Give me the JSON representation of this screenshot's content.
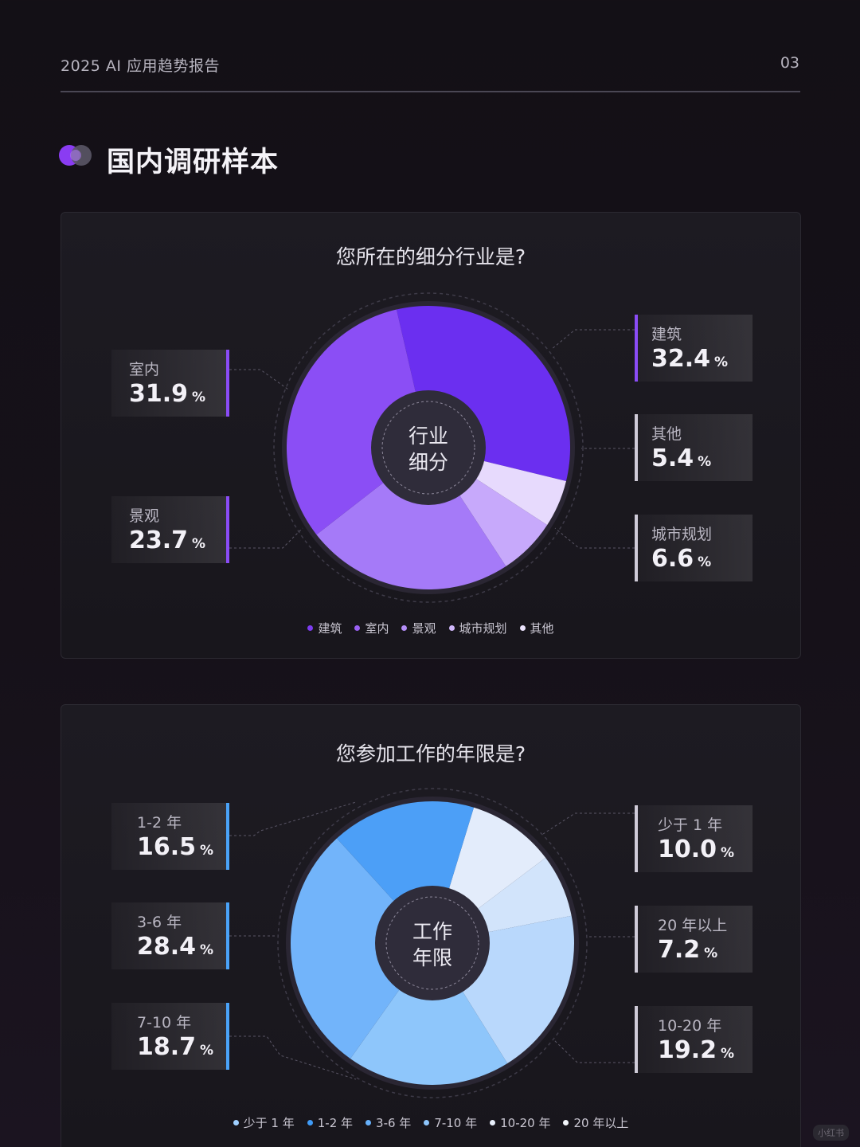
{
  "header": {
    "title": "2025 AI 应用趋势报告",
    "page": "03"
  },
  "section": {
    "title": "国内调研样本"
  },
  "watermark": "小红书",
  "chart_data": [
    {
      "type": "pie",
      "title": "您所在的细分行业是?",
      "center_label": [
        "行业",
        "细分"
      ],
      "slices": [
        {
          "label": "建筑",
          "value": 32.4,
          "unit": "%",
          "color": "#6b2ff0"
        },
        {
          "label": "其他",
          "value": 5.4,
          "unit": "%",
          "color": "#e7dafd"
        },
        {
          "label": "城市规划",
          "value": 6.6,
          "unit": "%",
          "color": "#c7a9fb"
        },
        {
          "label": "景观",
          "value": 23.7,
          "unit": "%",
          "color": "#a57af8"
        },
        {
          "label": "室内",
          "value": 31.9,
          "unit": "%",
          "color": "#8b4ef5"
        }
      ],
      "legend": [
        {
          "label": "建筑",
          "color": "#7c3cf0"
        },
        {
          "label": "室内",
          "color": "#9a61f4"
        },
        {
          "label": "景观",
          "color": "#b48ef8"
        },
        {
          "label": "城市规划",
          "color": "#d0b8fb"
        },
        {
          "label": "其他",
          "color": "#ece4fd"
        }
      ]
    },
    {
      "type": "pie",
      "title": "您参加工作的年限是?",
      "center_label": [
        "工作",
        "年限"
      ],
      "slices": [
        {
          "label": "少于 1 年",
          "value": 10.0,
          "unit": "%",
          "color": "#e3ecfb"
        },
        {
          "label": "20 年以上",
          "value": 7.2,
          "unit": "%",
          "color": "#d2e4fb"
        },
        {
          "label": "10-20 年",
          "value": 19.2,
          "unit": "%",
          "color": "#b9d8fc"
        },
        {
          "label": "7-10 年",
          "value": 18.7,
          "unit": "%",
          "color": "#8ec6fb"
        },
        {
          "label": "3-6 年",
          "value": 28.4,
          "unit": "%",
          "color": "#72b4fa"
        },
        {
          "label": "1-2 年",
          "value": 16.5,
          "unit": "%",
          "color": "#4c9ff7"
        }
      ],
      "legend": [
        {
          "label": "少于 1 年",
          "color": "#9fd0ff"
        },
        {
          "label": "1-2 年",
          "color": "#3f9bf7"
        },
        {
          "label": "3-6 年",
          "color": "#66b0fa"
        },
        {
          "label": "7-10 年",
          "color": "#8ec6fb"
        },
        {
          "label": "10-20 年",
          "color": "#e8f0fb"
        },
        {
          "label": "20 年以上",
          "color": "#f3f6fb"
        }
      ]
    }
  ],
  "stats": {
    "industry": {
      "left": [
        {
          "label": "室内",
          "value": "31.9",
          "unit": "%"
        },
        {
          "label": "景观",
          "value": "23.7",
          "unit": "%"
        }
      ],
      "right": [
        {
          "label": "建筑",
          "value": "32.4",
          "unit": "%"
        },
        {
          "label": "其他",
          "value": "5.4",
          "unit": "%"
        },
        {
          "label": "城市规划",
          "value": "6.6",
          "unit": "%"
        }
      ],
      "accent": "#8a4cf6"
    },
    "years": {
      "left": [
        {
          "label": "1-2 年",
          "value": "16.5",
          "unit": "%"
        },
        {
          "label": "3-6 年",
          "value": "28.4",
          "unit": "%"
        },
        {
          "label": "7-10 年",
          "value": "18.7",
          "unit": "%"
        }
      ],
      "right": [
        {
          "label": "少于 1 年",
          "value": "10.0",
          "unit": "%"
        },
        {
          "label": "20 年以上",
          "value": "7.2",
          "unit": "%"
        },
        {
          "label": "10-20 年",
          "value": "19.2",
          "unit": "%"
        }
      ],
      "accent": "#4aa3f8"
    }
  }
}
